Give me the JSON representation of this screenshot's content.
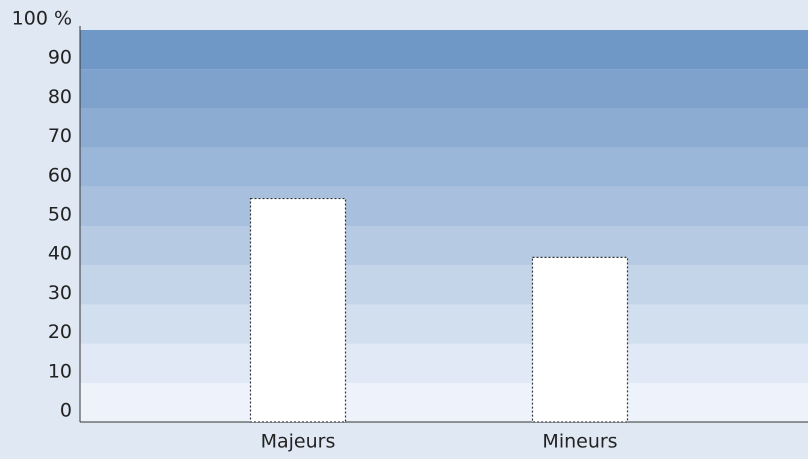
{
  "chart_data": {
    "type": "bar",
    "categories": [
      "Majeurs",
      "Mineurs"
    ],
    "values": [
      57,
      42
    ],
    "color": "#ffffff",
    "ylim": [
      0,
      100
    ],
    "yticks": [
      0,
      10,
      20,
      30,
      40,
      50,
      60,
      70,
      80,
      90,
      {
        "value": 100,
        "label": "100 %"
      }
    ]
  }
}
